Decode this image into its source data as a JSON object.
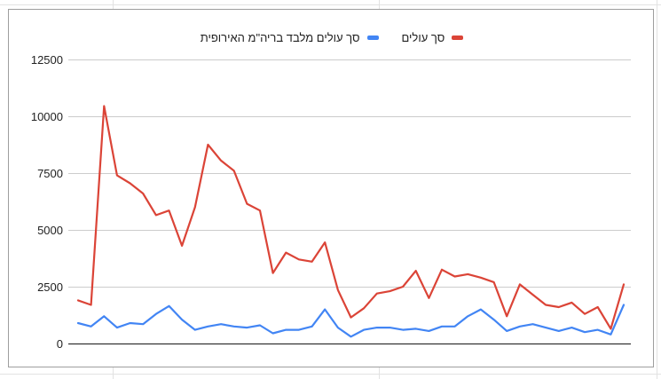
{
  "chart_data": {
    "type": "line",
    "title": "",
    "xlabel": "",
    "ylabel": "",
    "ylim": [
      0,
      13750
    ],
    "yticks": [
      0,
      2500,
      5000,
      7500,
      10000,
      12500
    ],
    "ytick_labels": [
      "0",
      "2500",
      "5000",
      "7500",
      "10000",
      "12500"
    ],
    "grid": true,
    "legend_position": "top",
    "x": [
      1,
      2,
      3,
      4,
      5,
      6,
      7,
      8,
      9,
      10,
      11,
      12,
      13,
      14,
      15,
      16,
      17,
      18,
      19,
      20,
      21,
      22,
      23,
      24,
      25,
      26,
      27,
      28,
      29,
      30,
      31,
      32,
      33,
      34,
      35,
      36,
      37,
      38,
      39,
      40,
      41,
      42,
      43
    ],
    "series": [
      {
        "name": "סך עולים",
        "color": "#db4437",
        "values": [
          1900,
          1700,
          10450,
          7400,
          7050,
          6600,
          5650,
          5850,
          4300,
          6000,
          8750,
          8050,
          7600,
          6150,
          5850,
          3100,
          4000,
          3700,
          3600,
          4450,
          2350,
          1150,
          1550,
          2200,
          2300,
          2500,
          3200,
          2000,
          3250,
          2950,
          3050,
          2900,
          2700,
          1200,
          2600,
          2150,
          1700,
          1600,
          1800,
          1300,
          1600,
          650,
          2600
        ]
      },
      {
        "name": "סך עולים מלבד בריה\"מ האירופית",
        "color": "#4285f4",
        "values": [
          900,
          750,
          1200,
          700,
          900,
          850,
          1300,
          1650,
          1050,
          600,
          750,
          850,
          750,
          700,
          800,
          450,
          600,
          600,
          750,
          1500,
          700,
          300,
          600,
          700,
          700,
          600,
          650,
          550,
          750,
          750,
          1200,
          1500,
          1050,
          550,
          750,
          850,
          700,
          550,
          700,
          500,
          600,
          400,
          1700
        ]
      }
    ]
  }
}
